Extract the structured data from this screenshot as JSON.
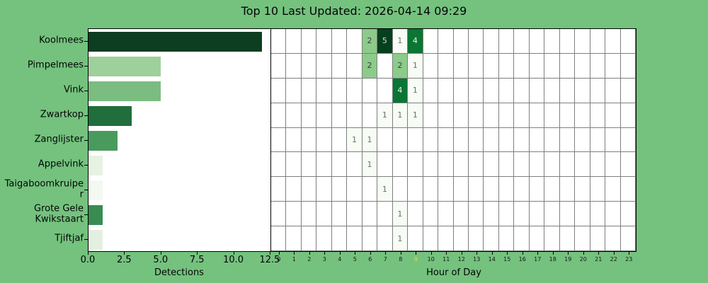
{
  "title": "Top 10 Last Updated: 2026-04-14 09:29",
  "colors": {
    "background": "#74c27e",
    "panel_background": "#ffffff",
    "spine": "#000000",
    "grid_line": "#7f7f7f",
    "text": "#050505",
    "highlighted_hour_text": "#dde33d"
  },
  "chart_data": [
    {
      "type": "bar",
      "orientation": "horizontal",
      "xlabel": "Detections",
      "xlim": [
        0,
        12.6
      ],
      "xtick_labels": [
        "0.0",
        "2.5",
        "5.0",
        "7.5",
        "10.0",
        "12.5"
      ],
      "xtick_values": [
        0,
        2.5,
        5,
        7.5,
        10,
        12.5
      ],
      "categories": [
        "Koolmees",
        "Pimpelmees",
        "Vink",
        "Zwartkop",
        "Zanglijster",
        "Appelvink",
        "Taigaboomkruiper",
        "Grote Gele Kwikstaart",
        "Tjiftjaf"
      ],
      "tick_label_lines": [
        [
          "Koolmees"
        ],
        [
          "Pimpelmees"
        ],
        [
          "Vink"
        ],
        [
          "Zwartkop"
        ],
        [
          "Zanglijster"
        ],
        [
          "Appelvink"
        ],
        [
          "Taigaboomkruipe",
          "r"
        ],
        [
          "Grote Gele",
          "Kwikstaart"
        ],
        [
          "Tjiftjaf"
        ]
      ],
      "values": [
        12,
        5,
        5,
        3,
        2,
        1,
        1,
        1,
        1
      ],
      "bar_colors": [
        "#0d3e21",
        "#9ed09b",
        "#7bbc80",
        "#1f6e3c",
        "#499b5d",
        "#e7f2e3",
        "#f3f9f1",
        "#388c51",
        "#e3f0e0"
      ],
      "grid": false
    },
    {
      "type": "heatmap",
      "xlabel": "Hour of Day",
      "x": [
        "0",
        "1",
        "2",
        "3",
        "4",
        "5",
        "6",
        "7",
        "8",
        "9",
        "10",
        "11",
        "12",
        "13",
        "14",
        "15",
        "16",
        "17",
        "18",
        "19",
        "20",
        "21",
        "22",
        "23"
      ],
      "highlighted_hour": "9",
      "categories": [
        "Koolmees",
        "Pimpelmees",
        "Vink",
        "Zwartkop",
        "Zanglijster",
        "Appelvink",
        "Taigaboomkruiper",
        "Grote Gele Kwikstaart",
        "Tjiftjaf"
      ],
      "cells": [
        {
          "row": 0,
          "hour": 6,
          "value": 2
        },
        {
          "row": 0,
          "hour": 7,
          "value": 5
        },
        {
          "row": 0,
          "hour": 8,
          "value": 1
        },
        {
          "row": 0,
          "hour": 9,
          "value": 4
        },
        {
          "row": 1,
          "hour": 6,
          "value": 2
        },
        {
          "row": 1,
          "hour": 8,
          "value": 2
        },
        {
          "row": 1,
          "hour": 9,
          "value": 1
        },
        {
          "row": 2,
          "hour": 8,
          "value": 4
        },
        {
          "row": 2,
          "hour": 9,
          "value": 1
        },
        {
          "row": 3,
          "hour": 7,
          "value": 1
        },
        {
          "row": 3,
          "hour": 8,
          "value": 1
        },
        {
          "row": 3,
          "hour": 9,
          "value": 1
        },
        {
          "row": 4,
          "hour": 5,
          "value": 1
        },
        {
          "row": 4,
          "hour": 6,
          "value": 1
        },
        {
          "row": 5,
          "hour": 6,
          "value": 1
        },
        {
          "row": 6,
          "hour": 7,
          "value": 1
        },
        {
          "row": 7,
          "hour": 8,
          "value": 1
        },
        {
          "row": 8,
          "hour": 8,
          "value": 1
        }
      ],
      "value_styles": {
        "1": {
          "bg": "#f7fcf5",
          "text": "#6e6e6e"
        },
        "2": {
          "bg": "#8ccb8a",
          "text": "#3d3d3d"
        },
        "4": {
          "bg": "#0a7634",
          "text": "#f2f2f2"
        },
        "5": {
          "bg": "#05401e",
          "text": "#d6d6d6"
        }
      }
    }
  ]
}
